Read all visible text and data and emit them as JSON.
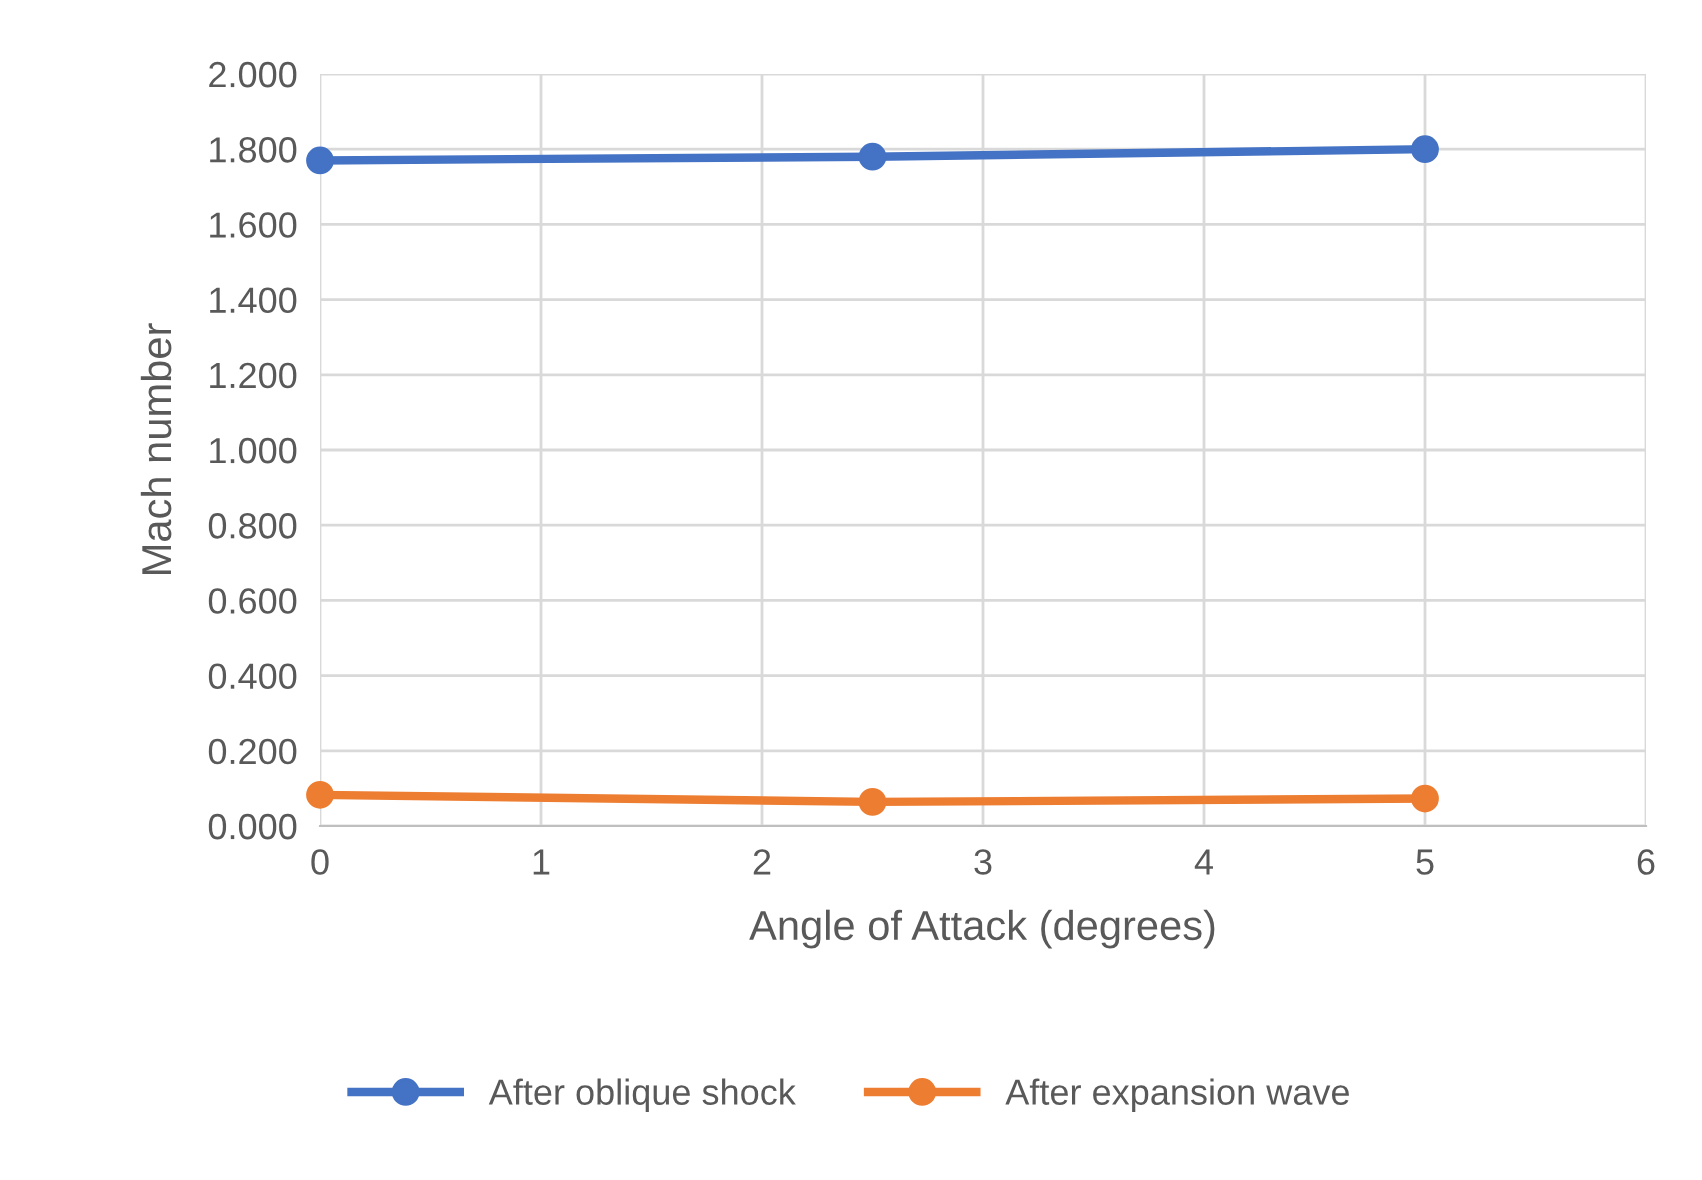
{
  "chart_data": {
    "type": "line",
    "xlabel": "Angle of Attack (degrees)",
    "ylabel": "Mach number",
    "x": [
      0,
      2.5,
      5
    ],
    "series": [
      {
        "name": "After oblique shock",
        "color": "#4472c4",
        "values": [
          1.77,
          1.78,
          1.8
        ]
      },
      {
        "name": "After expansion wave",
        "color": "#ed7d31",
        "values": [
          0.083,
          0.064,
          0.073
        ]
      }
    ],
    "xlim": [
      0,
      6
    ],
    "xticks": [
      0,
      1,
      2,
      3,
      4,
      5,
      6
    ],
    "ylim": [
      0,
      2
    ],
    "yticks": [
      {
        "value": 0,
        "label": "0.000"
      },
      {
        "value": 0.2,
        "label": "0.200"
      },
      {
        "value": 0.4,
        "label": "0.400"
      },
      {
        "value": 0.6,
        "label": "0.600"
      },
      {
        "value": 0.8,
        "label": "0.800"
      },
      {
        "value": 1.0,
        "label": "1.000"
      },
      {
        "value": 1.2,
        "label": "1.200"
      },
      {
        "value": 1.4,
        "label": "1.400"
      },
      {
        "value": 1.6,
        "label": "1.600"
      },
      {
        "value": 1.8,
        "label": "1.800"
      },
      {
        "value": 2.0,
        "label": "2.000"
      }
    ],
    "grid": true,
    "legend": "bottom",
    "marker": "circle",
    "line_style": "solid"
  }
}
